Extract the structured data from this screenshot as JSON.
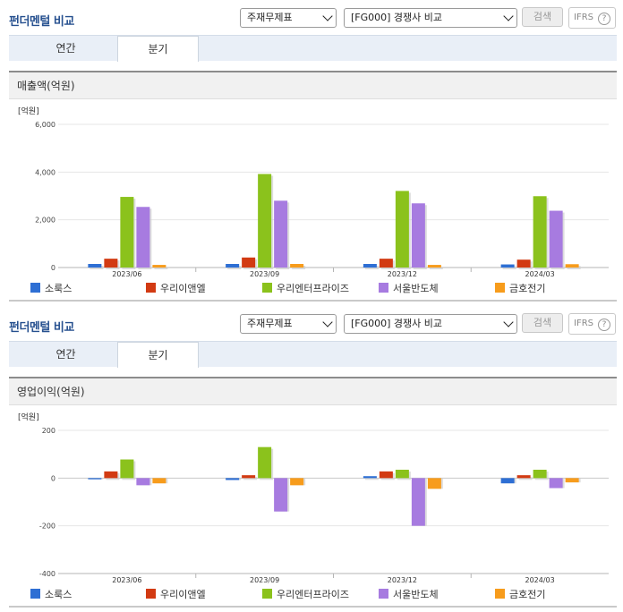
{
  "panels": [
    {
      "title": "펀더멘털 비교",
      "statement_select": "주재무제표",
      "peer_select": "[FG000] 경쟁사 비교",
      "search_label": "검색",
      "ifrs_label": "IFRS",
      "help_glyph": "?",
      "tabs": [
        {
          "label": "연간"
        },
        {
          "label": "분기"
        }
      ],
      "active_tab": "분기",
      "chart_header": "매출액(억원)"
    },
    {
      "title": "펀더멘털 비교",
      "statement_select": "주재무제표",
      "peer_select": "[FG000] 경쟁사 비교",
      "search_label": "검색",
      "ifrs_label": "IFRS",
      "help_glyph": "?",
      "tabs": [
        {
          "label": "연간"
        },
        {
          "label": "분기"
        }
      ],
      "active_tab": "분기",
      "chart_header": "영업이익(억원)"
    }
  ],
  "chart_data": [
    {
      "type": "bar",
      "title": "매출액(억원)",
      "unit_label": "[억원]",
      "categories": [
        "2023/06",
        "2023/09",
        "2023/12",
        "2024/03"
      ],
      "ylim": [
        0,
        6000
      ],
      "yticks": [
        0,
        2000,
        4000,
        6000
      ],
      "ytick_labels": [
        "0",
        "2,000",
        "4,000",
        "6,000"
      ],
      "grid": true,
      "legend_position": "bottom",
      "series": [
        {
          "name": "소룩스",
          "color": "#2e6fd4",
          "values": [
            150,
            150,
            150,
            130
          ]
        },
        {
          "name": "우리이앤엘",
          "color": "#d23a12",
          "values": [
            370,
            420,
            370,
            330
          ]
        },
        {
          "name": "우리엔터프라이즈",
          "color": "#8bc21c",
          "values": [
            2960,
            3920,
            3210,
            2990
          ]
        },
        {
          "name": "서울반도체",
          "color": "#a77be0",
          "values": [
            2540,
            2800,
            2690,
            2380
          ]
        },
        {
          "name": "금호전기",
          "color": "#f79c1c",
          "values": [
            110,
            150,
            110,
            140
          ]
        }
      ]
    },
    {
      "type": "bar",
      "title": "영업이익(억원)",
      "unit_label": "[억원]",
      "categories": [
        "2023/06",
        "2023/09",
        "2023/12",
        "2024/03"
      ],
      "ylim": [
        -400,
        200
      ],
      "yticks": [
        -400,
        -200,
        0,
        200
      ],
      "ytick_labels": [
        "-400",
        "-200",
        "0",
        "200"
      ],
      "grid": true,
      "legend_position": "bottom",
      "series": [
        {
          "name": "소룩스",
          "color": "#2e6fd4",
          "values": [
            -5,
            -8,
            8,
            -22
          ]
        },
        {
          "name": "우리이앤엘",
          "color": "#d23a12",
          "values": [
            28,
            12,
            28,
            12
          ]
        },
        {
          "name": "우리엔터프라이즈",
          "color": "#8bc21c",
          "values": [
            78,
            130,
            35,
            35
          ]
        },
        {
          "name": "서울반도체",
          "color": "#a77be0",
          "values": [
            -30,
            -140,
            -200,
            -42
          ]
        },
        {
          "name": "금호전기",
          "color": "#f79c1c",
          "values": [
            -22,
            -30,
            -45,
            -18
          ]
        }
      ]
    }
  ]
}
